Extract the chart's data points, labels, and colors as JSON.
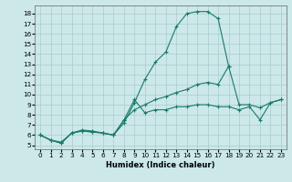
{
  "xlabel": "Humidex (Indice chaleur)",
  "bg_color": "#cce8e8",
  "grid_color": "#aacccc",
  "line_color": "#1a7a6a",
  "xlim": [
    -0.5,
    23.5
  ],
  "ylim": [
    4.6,
    18.8
  ],
  "xticks": [
    0,
    1,
    2,
    3,
    4,
    5,
    6,
    7,
    8,
    9,
    10,
    11,
    12,
    13,
    14,
    15,
    16,
    17,
    18,
    19,
    20,
    21,
    22,
    23
  ],
  "yticks": [
    5,
    6,
    7,
    8,
    9,
    10,
    11,
    12,
    13,
    14,
    15,
    16,
    17,
    18
  ],
  "series": [
    {
      "x": [
        0,
        1,
        2,
        3,
        4,
        5,
        6,
        7,
        8,
        9,
        10,
        11,
        12,
        13,
        14,
        15,
        16,
        17,
        18
      ],
      "y": [
        6.0,
        5.5,
        5.2,
        6.2,
        6.5,
        6.4,
        6.2,
        6.0,
        7.2,
        9.2,
        11.5,
        13.2,
        14.2,
        16.7,
        18.0,
        18.2,
        18.2,
        17.5,
        12.8
      ]
    },
    {
      "x": [
        0,
        1,
        2,
        3,
        4,
        5,
        6,
        7,
        8,
        9,
        10,
        11,
        12,
        13,
        14,
        15,
        16,
        17,
        18,
        19,
        20,
        21,
        22,
        23
      ],
      "y": [
        6.0,
        5.5,
        5.3,
        6.2,
        6.4,
        6.3,
        6.2,
        6.0,
        7.5,
        8.5,
        9.0,
        9.5,
        9.8,
        10.2,
        10.5,
        11.0,
        11.2,
        11.0,
        12.8,
        9.0,
        9.0,
        8.7,
        9.2,
        9.5
      ]
    },
    {
      "x": [
        0,
        1,
        2,
        3,
        4,
        5,
        6,
        7,
        8,
        9,
        10,
        11,
        12,
        13,
        14,
        15,
        16,
        17,
        18,
        19,
        20,
        21,
        22,
        23
      ],
      "y": [
        6.0,
        5.5,
        5.2,
        6.2,
        6.4,
        6.3,
        6.2,
        6.0,
        7.5,
        9.5,
        8.2,
        8.5,
        8.5,
        8.8,
        8.8,
        9.0,
        9.0,
        8.8,
        8.8,
        8.5,
        8.8,
        7.5,
        9.2,
        9.5
      ]
    }
  ]
}
